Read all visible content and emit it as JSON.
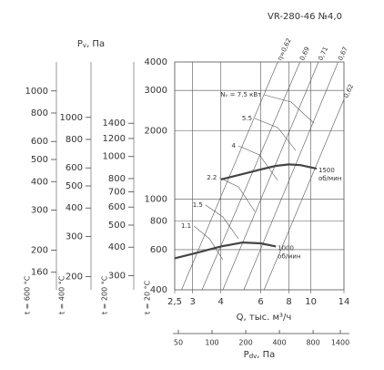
{
  "title": "VR-280-46 №4,0",
  "chart_data": {
    "type": "nomogram",
    "xlog": true,
    "ylog": true,
    "grid": true,
    "xlabel": "Q, тыс. м³/ч",
    "xlim": [
      2.5,
      14
    ],
    "xticks": [
      {
        "value": 2.5,
        "label": "2,5"
      },
      3,
      4,
      6,
      8,
      10,
      14
    ],
    "ylim": [
      400,
      4000
    ],
    "yticks": [
      400,
      600,
      800,
      1000,
      2000,
      3000,
      4000
    ],
    "main_scale_label": "t = 20 °C",
    "series": [
      {
        "name": "1500",
        "unit": "об/мин",
        "color": "#444444",
        "x": [
          4,
          5,
          6,
          7,
          8,
          9,
          10.6
        ],
        "values": [
          1220,
          1290,
          1350,
          1400,
          1420,
          1410,
          1360
        ]
      },
      {
        "name": "1000",
        "unit": "об/мин",
        "color": "#444444",
        "x": [
          2.5,
          3,
          4,
          5,
          6,
          7
        ],
        "values": [
          550,
          575,
          620,
          645,
          640,
          620
        ]
      }
    ],
    "efficiency_lines": [
      {
        "label": "η=0,62",
        "x": [
          2.68,
          7.13
        ],
        "values": [
          400,
          4000
        ]
      },
      {
        "label": "0,69",
        "x": [
          3.3,
          8.95
        ],
        "values": [
          400,
          4000
        ]
      },
      {
        "label": "0,71",
        "x": [
          4.08,
          10.8
        ],
        "values": [
          400,
          4000
        ]
      },
      {
        "label": "0,67",
        "x": [
          5.05,
          13.2
        ],
        "values": [
          400,
          4000
        ]
      },
      {
        "label": "0,62",
        "x": [
          6.21,
          14
        ],
        "values": [
          400,
          2742
        ]
      }
    ],
    "power_curves": [
      {
        "label": "Nᵥ = 7.5 кВт",
        "x": [
          6.21,
          8.18,
          10.3
        ],
        "values": [
          2871,
          2667,
          2156
        ]
      },
      {
        "label": "5.5",
        "x": [
          5.65,
          7.13,
          8.57
        ],
        "values": [
          2259,
          2061,
          1637
        ]
      },
      {
        "label": "4",
        "x": [
          4.78,
          5.92,
          7.13
        ],
        "values": [
          1714,
          1563,
          1208
        ]
      },
      {
        "label": "2.2",
        "x": [
          3.95,
          4.78,
          5.65
        ],
        "values": [
          1241,
          1133,
          883
        ]
      },
      {
        "label": "1.5",
        "x": [
          3.42,
          4.08,
          4.78
        ],
        "values": [
          943,
          836,
          670
        ]
      },
      {
        "label": "1.1",
        "x": [
          3.04,
          3.56,
          4.08
        ],
        "values": [
          762,
          670,
          542
        ]
      }
    ],
    "pressure_title": {
      "main": "P",
      "sub": "v",
      "rest": ", Па"
    },
    "pressure_scales": [
      {
        "label": "t = 600 °C",
        "ylim": [
          134,
          1340
        ],
        "yticks": [
          1000,
          800,
          600,
          500,
          400,
          300,
          200,
          160
        ]
      },
      {
        "label": "t = 400 °C",
        "ylim": [
          175,
          1750
        ],
        "yticks": [
          1000,
          800,
          600,
          500,
          400,
          300,
          200
        ]
      },
      {
        "label": "t = 200 °C",
        "ylim": [
          260,
          2600
        ],
        "yticks": [
          1400,
          1200,
          1000,
          800,
          700,
          600,
          500,
          400,
          300
        ]
      }
    ],
    "dynamic_axis": {
      "label": {
        "main": "P",
        "sub": "dv",
        "rest": ", Па"
      },
      "xlim": [
        50,
        1400
      ],
      "xticks": [
        50,
        100,
        200,
        400,
        800,
        1400
      ]
    }
  }
}
